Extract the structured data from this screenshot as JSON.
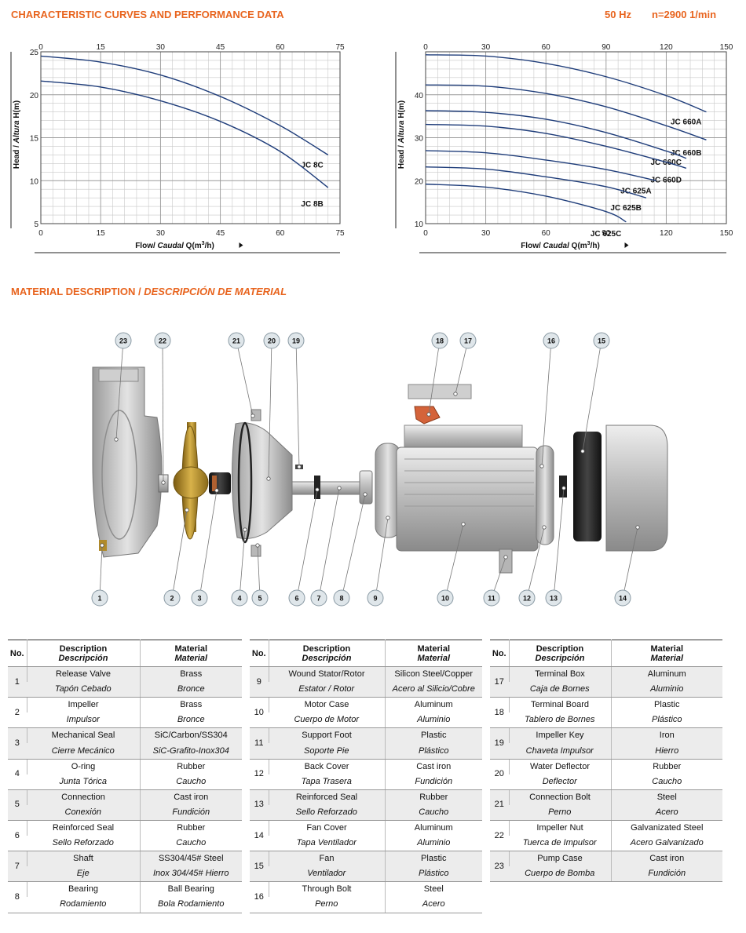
{
  "header": {
    "title": "CHARACTERISTIC CURVES AND PERFORMANCE DATA",
    "frequency": "50 Hz",
    "speed": "n=2900 1/min"
  },
  "material_section": {
    "title_en": "MATERIAL DESCRIPTION / ",
    "title_es": "DESCRIPCIÓN DE MATERIAL"
  },
  "chart_data": [
    {
      "type": "line",
      "x_ticks": [
        "0",
        "15",
        "30",
        "45",
        "60",
        "75"
      ],
      "y_ticks": [
        "5",
        "10",
        "15",
        "20",
        "25"
      ],
      "xlim": [
        0,
        75
      ],
      "ylim": [
        5,
        25
      ],
      "grid": true,
      "ylabel": "Head / Altura H(m)",
      "ylabel_parts": [
        "Head / ",
        "Altura",
        " H(m)"
      ],
      "xlabel": "Flow/ Caudal Q(m³/h)",
      "xlabel_parts": [
        "Flow/ ",
        "Caudal",
        " Q(m",
        "3",
        "/h)"
      ],
      "series": [
        {
          "name": "JC 8C",
          "x": [
            0,
            15,
            30,
            45,
            60,
            72
          ],
          "y": [
            24.5,
            23.8,
            22.3,
            19.8,
            16.4,
            13.0
          ]
        },
        {
          "name": "JC 8B",
          "x": [
            0,
            15,
            30,
            45,
            60,
            72
          ],
          "y": [
            21.6,
            20.9,
            19.3,
            16.9,
            13.4,
            9.2
          ]
        }
      ]
    },
    {
      "type": "line",
      "x_ticks": [
        "0",
        "30",
        "60",
        "90",
        "120",
        "150"
      ],
      "y_ticks": [
        "10",
        "20",
        "30",
        "40"
      ],
      "xlim": [
        0,
        150
      ],
      "ylim": [
        10,
        50
      ],
      "grid": true,
      "ylabel": "Head / Altura H(m)",
      "ylabel_parts": [
        "Head / ",
        "Altura",
        " H(m)"
      ],
      "xlabel": "Flow/ Caudal Q(m³/h)",
      "xlabel_parts": [
        "Flow/ ",
        "Caudal",
        " Q(m",
        "3",
        "/h)"
      ],
      "series": [
        {
          "name": "JC 660A",
          "x": [
            0,
            30,
            60,
            90,
            120,
            140
          ],
          "y": [
            49.3,
            49.0,
            47.3,
            44.2,
            39.8,
            36.0
          ]
        },
        {
          "name": "JC 660B",
          "x": [
            0,
            30,
            60,
            90,
            120,
            140
          ],
          "y": [
            42.3,
            42.0,
            40.3,
            37.2,
            32.8,
            29.5
          ]
        },
        {
          "name": "JC 660C",
          "x": [
            0,
            30,
            60,
            90,
            120,
            130
          ],
          "y": [
            36.3,
            35.9,
            34.3,
            31.2,
            26.9,
            25.2
          ]
        },
        {
          "name": "JC 660D",
          "x": [
            0,
            30,
            60,
            90,
            120,
            130
          ],
          "y": [
            33.1,
            32.7,
            31.0,
            28.0,
            24.3,
            22.9
          ]
        },
        {
          "name": "JC 625A",
          "x": [
            0,
            30,
            60,
            90,
            115
          ],
          "y": [
            27.0,
            26.5,
            24.8,
            22.6,
            20.0
          ]
        },
        {
          "name": "JC 625B",
          "x": [
            0,
            30,
            60,
            90,
            110
          ],
          "y": [
            23.2,
            22.7,
            20.9,
            18.6,
            16.0
          ]
        },
        {
          "name": "JC 625C",
          "x": [
            0,
            30,
            60,
            90,
            100
          ],
          "y": [
            19.2,
            18.5,
            16.4,
            12.8,
            10.4
          ]
        }
      ]
    }
  ],
  "diagram": {
    "callouts": [
      "1",
      "2",
      "3",
      "4",
      "5",
      "6",
      "7",
      "8",
      "9",
      "10",
      "11",
      "12",
      "13",
      "14",
      "15",
      "16",
      "17",
      "18",
      "19",
      "20",
      "21",
      "22",
      "23"
    ]
  },
  "table_headers": {
    "no": "No.",
    "desc_en": "Description",
    "desc_es": "Descripción",
    "mat_en": "Material",
    "mat_es": "Material"
  },
  "materials": [
    [
      {
        "no": "1",
        "en": "Release Valve",
        "es": "Tapón Cebado",
        "mat_en": "Brass",
        "mat_es": "Bronce"
      },
      {
        "no": "2",
        "en": "Impeller",
        "es": "Impulsor",
        "mat_en": "Brass",
        "mat_es": "Bronce"
      },
      {
        "no": "3",
        "en": "Mechanical Seal",
        "es": "Cierre Mecánico",
        "mat_en": "SiC/Carbon/SS304",
        "mat_es": "SiC-Grafito-Inox304"
      },
      {
        "no": "4",
        "en": "O-ring",
        "es": "Junta Tórica",
        "mat_en": "Rubber",
        "mat_es": "Caucho"
      },
      {
        "no": "5",
        "en": "Connection",
        "es": "Conexión",
        "mat_en": "Cast iron",
        "mat_es": "Fundición"
      },
      {
        "no": "6",
        "en": "Reinforced Seal",
        "es": "Sello Reforzado",
        "mat_en": "Rubber",
        "mat_es": "Caucho"
      },
      {
        "no": "7",
        "en": "Shaft",
        "es": "Eje",
        "mat_en": "SS304/45# Steel",
        "mat_es": "Inox 304/45# Hierro"
      },
      {
        "no": "8",
        "en": "Bearing",
        "es": "Rodamiento",
        "mat_en": "Ball Bearing",
        "mat_es": "Bola Rodamiento"
      }
    ],
    [
      {
        "no": "9",
        "en": "Wound Stator/Rotor",
        "es": "Estator / Rotor",
        "mat_en": "Silicon Steel/Copper",
        "mat_es": "Acero al Silicio/Cobre"
      },
      {
        "no": "10",
        "en": "Motor Case",
        "es": "Cuerpo de Motor",
        "mat_en": "Aluminum",
        "mat_es": "Aluminio"
      },
      {
        "no": "11",
        "en": "Support Foot",
        "es": "Soporte Pie",
        "mat_en": "Plastic",
        "mat_es": "Plástico"
      },
      {
        "no": "12",
        "en": "Back Cover",
        "es": "Tapa Trasera",
        "mat_en": "Cast iron",
        "mat_es": "Fundición"
      },
      {
        "no": "13",
        "en": "Reinforced Seal",
        "es": "Sello Reforzado",
        "mat_en": "Rubber",
        "mat_es": "Caucho"
      },
      {
        "no": "14",
        "en": "Fan Cover",
        "es": "Tapa Ventilador",
        "mat_en": "Aluminum",
        "mat_es": "Aluminio"
      },
      {
        "no": "15",
        "en": "Fan",
        "es": "Ventilador",
        "mat_en": "Plastic",
        "mat_es": "Plástico"
      },
      {
        "no": "16",
        "en": "Through Bolt",
        "es": "Perno",
        "mat_en": "Steel",
        "mat_es": "Acero"
      }
    ],
    [
      {
        "no": "17",
        "en": "Terminal Box",
        "es": "Caja de Bornes",
        "mat_en": "Aluminum",
        "mat_es": "Aluminio"
      },
      {
        "no": "18",
        "en": "Terminal Board",
        "es": "Tablero de Bornes",
        "mat_en": "Plastic",
        "mat_es": "Plástico"
      },
      {
        "no": "19",
        "en": "Impeller Key",
        "es": "Chaveta Impulsor",
        "mat_en": "Iron",
        "mat_es": "Hierro"
      },
      {
        "no": "20",
        "en": "Water Deflector",
        "es": "Deflector",
        "mat_en": "Rubber",
        "mat_es": "Caucho"
      },
      {
        "no": "21",
        "en": "Connection Bolt",
        "es": "Perno",
        "mat_en": "Steel",
        "mat_es": "Acero"
      },
      {
        "no": "22",
        "en": "Impeller Nut",
        "es": "Tuerca de Impulsor",
        "mat_en": "Galvanizated Steel",
        "mat_es": "Acero Galvanizado"
      },
      {
        "no": "23",
        "en": "Pump Case",
        "es": "Cuerpo de Bomba",
        "mat_en": "Cast iron",
        "mat_es": "Fundición"
      }
    ]
  ],
  "colors": {
    "accent": "#e8641e",
    "curve": "#1f3d7a",
    "grid": "#c8c8c8"
  }
}
